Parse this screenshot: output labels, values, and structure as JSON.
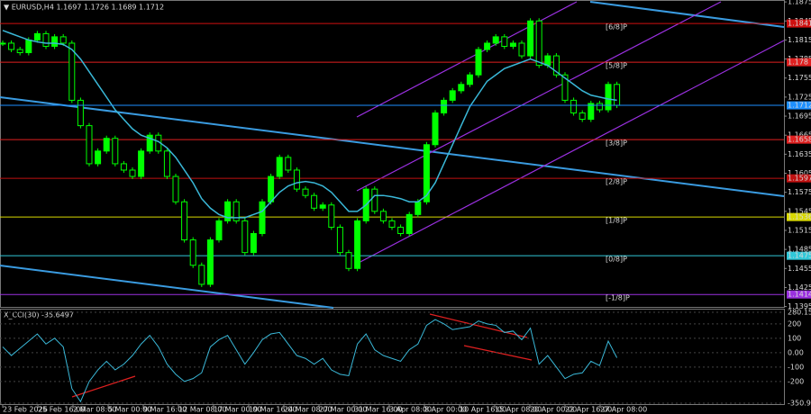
{
  "chart_data": [
    {
      "type": "candlestick",
      "title": "▼ EURUSD,H4  1.1697 1.1726 1.1689 1.1712",
      "close": [
        1.181,
        1.18,
        1.1795,
        1.1815,
        1.1825,
        1.1805,
        1.182,
        1.181,
        1.172,
        1.168,
        1.162,
        1.164,
        1.166,
        1.162,
        1.161,
        1.16,
        1.164,
        1.1665,
        1.164,
        1.16,
        1.156,
        1.15,
        1.146,
        1.143,
        1.15,
        1.153,
        1.156,
        1.153,
        1.148,
        1.151,
        1.156,
        1.16,
        1.163,
        1.161,
        1.158,
        1.157,
        1.155,
        1.1555,
        1.152,
        1.148,
        1.1455,
        1.153,
        1.158,
        1.1545,
        1.153,
        1.152,
        1.151,
        1.154,
        1.156,
        1.165,
        1.17,
        1.172,
        1.1735,
        1.1745,
        1.176,
        1.18,
        1.181,
        1.182,
        1.1805,
        1.181,
        1.179,
        1.1845,
        1.1775,
        1.179,
        1.176,
        1.172,
        1.17,
        1.169,
        1.1715,
        1.1705,
        1.1745,
        1.1712
      ],
      "color": "#00ff00",
      "ma_values": [
        1.183,
        1.1825,
        1.182,
        1.1815,
        1.1812,
        1.181,
        1.181,
        1.1808,
        1.18,
        1.1785,
        1.1765,
        1.1745,
        1.1725,
        1.1705,
        1.169,
        1.1675,
        1.1665,
        1.166,
        1.1655,
        1.1645,
        1.163,
        1.161,
        1.159,
        1.1565,
        1.155,
        1.154,
        1.1535,
        1.1535,
        1.1535,
        1.154,
        1.1545,
        1.156,
        1.1575,
        1.1585,
        1.159,
        1.1592,
        1.159,
        1.1585,
        1.1575,
        1.156,
        1.1545,
        1.1545,
        1.1555,
        1.157,
        1.157,
        1.1568,
        1.1565,
        1.156,
        1.156,
        1.157,
        1.159,
        1.162,
        1.165,
        1.168,
        1.171,
        1.173,
        1.175,
        1.176,
        1.177,
        1.1775,
        1.178,
        1.1785,
        1.178,
        1.1775,
        1.1765,
        1.1755,
        1.1745,
        1.1735,
        1.1728,
        1.1725,
        1.1722,
        1.172
      ],
      "ma_color": "#3ab8d8",
      "levels": [
        {
          "name": "[6/8]P",
          "value": 1.1841,
          "color": "#d01010"
        },
        {
          "name": "[5/8]P",
          "value": 1.178,
          "color": "#e02020"
        },
        {
          "name": "[3/8]P",
          "value": 1.1658,
          "color": "#e02020"
        },
        {
          "name": "[2/8]P",
          "value": 1.1597,
          "color": "#c01010"
        },
        {
          "name": "[1/8]P",
          "value": 1.1536,
          "color": "#d8d800"
        },
        {
          "name": "[0/8]P",
          "value": 1.1475,
          "color": "#30c8d8"
        },
        {
          "name": "[-1/8]P",
          "value": 1.1414,
          "color": "#9a30e0"
        }
      ],
      "current_price": 1.1712,
      "current_color": "#1e90ff",
      "ylim": [
        1.1393,
        1.1878
      ],
      "yticks": [
        1.1395,
        1.1425,
        1.1455,
        1.1485,
        1.1515,
        1.1545,
        1.1575,
        1.1605,
        1.1635,
        1.1665,
        1.1695,
        1.1725,
        1.1755,
        1.1785,
        1.1815,
        1.1845,
        1.1875
      ]
    },
    {
      "type": "line",
      "title": "X_CCI(30) -35.6497",
      "values": [
        40,
        -20,
        30,
        80,
        130,
        60,
        100,
        40,
        -250,
        -340,
        -200,
        -120,
        -60,
        -120,
        -80,
        -20,
        60,
        120,
        40,
        -80,
        -150,
        -200,
        -180,
        -140,
        40,
        90,
        120,
        20,
        -80,
        0,
        90,
        130,
        140,
        60,
        -20,
        -40,
        -80,
        -40,
        -120,
        -150,
        -160,
        60,
        130,
        20,
        -20,
        -40,
        -60,
        20,
        60,
        190,
        230,
        200,
        160,
        170,
        180,
        220,
        200,
        190,
        140,
        150,
        90,
        170,
        -80,
        -20,
        -100,
        -180,
        -150,
        -140,
        -60,
        -90,
        80,
        -35.6497
      ],
      "color": "#3ab8d8",
      "ylim": [
        -350.973,
        280.1556
      ],
      "yticks": [
        280.1556,
        200,
        100,
        {
          "value": 0,
          "label": "0.00"
        },
        -100,
        -200,
        -350.973
      ],
      "x_labels": [
        "23 Feb 2026",
        "25 Feb 16:00",
        "2 Mar 08:00",
        "5 Mar 00:00",
        "9 Mar 16:00",
        "12 Mar 08:00",
        "17 Mar 00:00",
        "19 Mar 16:00",
        "24 Mar 08:00",
        "27 Mar 00:00",
        "31 Mar 16:00",
        "3 Apr 08:00",
        "8 Apr 00:00",
        "10 Apr 16:00",
        "15 Apr 08:00",
        "20 Apr 00:00",
        "22 Apr 16:00",
        "27 Apr 08:00"
      ]
    }
  ]
}
